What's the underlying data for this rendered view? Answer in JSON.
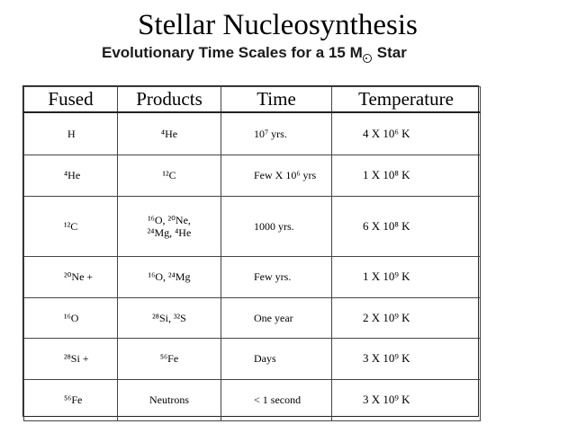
{
  "title": "Stellar Nucleosynthesis",
  "subtitle": {
    "prefix": "Evolutionary Time Scales for a 15 M",
    "suffix": "Star",
    "symbol_icon": "sun-symbol-icon"
  },
  "table": {
    "headers": [
      "Fused",
      "Products",
      "Time",
      "Temperature"
    ],
    "rows": [
      {
        "fused": "H",
        "products": "⁴He",
        "time": "10⁷ yrs.",
        "temperature": "4 X 10⁶ K"
      },
      {
        "fused": "⁴He",
        "products": "¹²C",
        "time": "Few X 10⁶ yrs",
        "temperature": "1 X 10⁸ K"
      },
      {
        "fused": "¹²C",
        "products": "¹⁶O, ²⁰Ne,\n²⁴Mg, ⁴He",
        "time": "1000 yrs.",
        "temperature": "6 X 10⁸ K"
      },
      {
        "fused": "²⁰Ne +",
        "products": "¹⁶O, ²⁴Mg",
        "time": "Few yrs.",
        "temperature": "1 X 10⁹ K"
      },
      {
        "fused": "¹⁶O",
        "products": "²⁸Si, ³²S",
        "time": "One year",
        "temperature": "2 X 10⁹ K"
      },
      {
        "fused": "²⁸Si +",
        "products": "⁵⁶Fe",
        "time": "Days",
        "temperature": "3 X 10⁹ K"
      },
      {
        "fused": "⁵⁶Fe",
        "products": "Neutrons",
        "time": "< 1 second",
        "temperature": "3 X 10⁹ K"
      }
    ]
  }
}
